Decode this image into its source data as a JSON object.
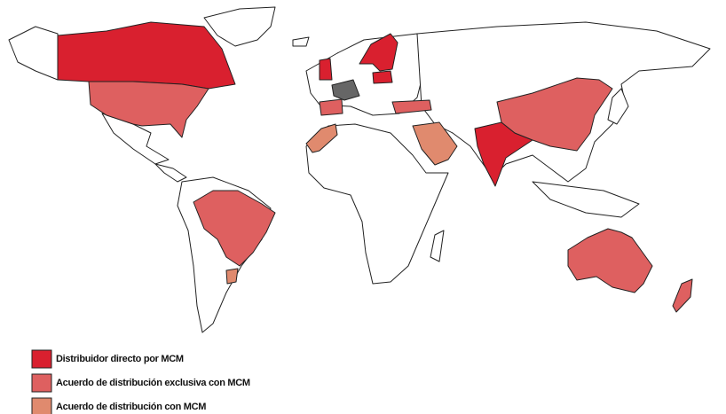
{
  "legend": {
    "items": [
      {
        "label": "Distribuidor directo por MCM",
        "color": "#d9202f"
      },
      {
        "label": "Acuerdo de distribución exclusiva con MCM",
        "color": "#de6060"
      },
      {
        "label": "Acuerdo de distribución con MCM",
        "color": "#e08a6e"
      }
    ]
  }
}
